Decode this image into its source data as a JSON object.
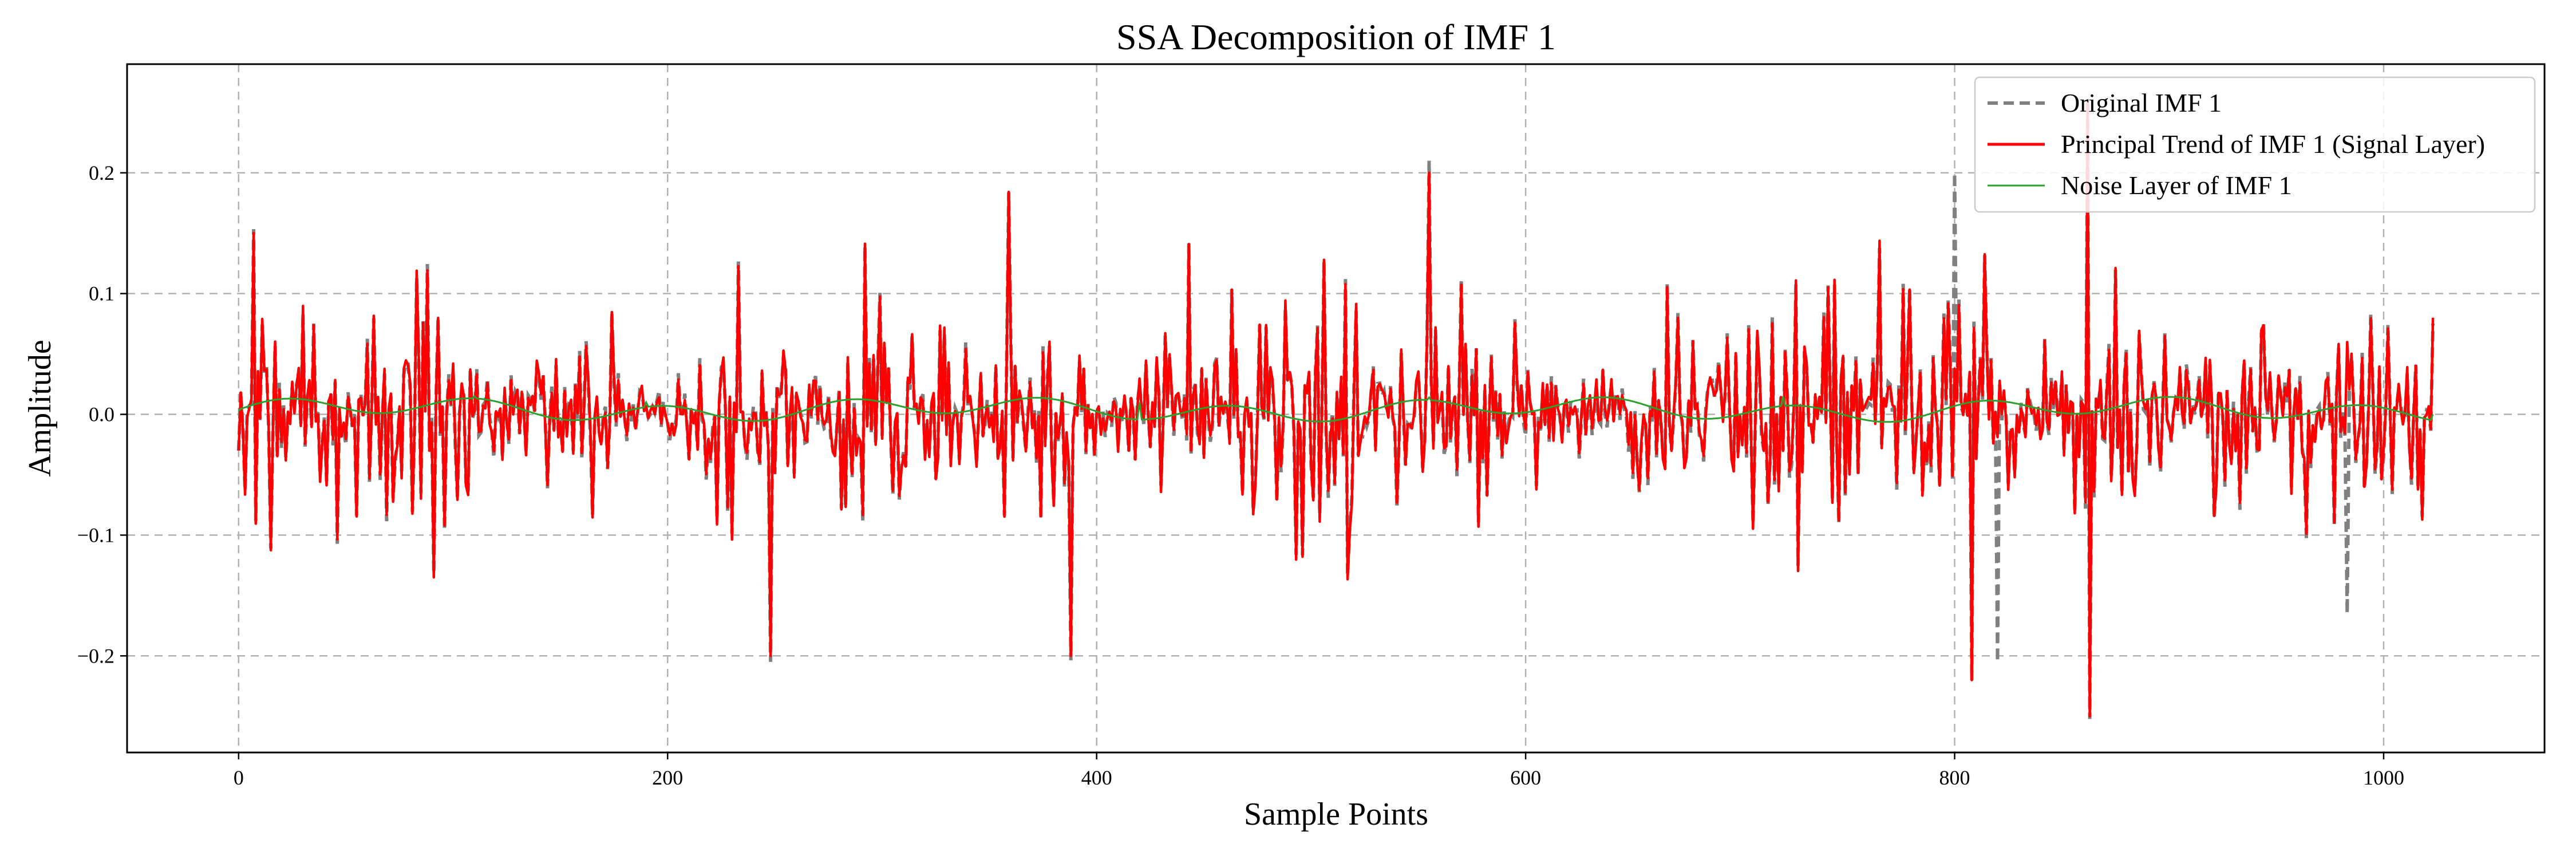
{
  "chart_data": {
    "type": "line",
    "title": "SSA Decomposition of IMF 1",
    "xlabel": "Sample Points",
    "ylabel": "Amplitude",
    "xlim": [
      -52,
      1075
    ],
    "ylim": [
      -0.28,
      0.29
    ],
    "x_ticks": [
      0,
      200,
      400,
      600,
      800,
      1000
    ],
    "x_tick_labels": [
      "0",
      "200",
      "400",
      "600",
      "800",
      "1000"
    ],
    "y_ticks": [
      -0.2,
      -0.1,
      0.0,
      0.1,
      0.2
    ],
    "y_tick_labels": [
      "−0.2",
      "−0.1",
      "0.0",
      "0.1",
      "0.2"
    ],
    "grid": true,
    "legend_position": "top-right",
    "n_points": 1024,
    "series": [
      {
        "name": "Original IMF 1",
        "color": "#808080",
        "style": "dashed",
        "description": "oscillating around 0, mostly within ±0.1, peaks ~0.21, troughs ~-0.21",
        "sample_values": [
          [
            0,
            -0.03
          ],
          [
            248,
            -0.205
          ],
          [
            555,
            0.21
          ],
          [
            800,
            0.2
          ],
          [
            820,
            -0.205
          ],
          [
            862,
            0.26
          ],
          [
            983,
            -0.165
          ]
        ]
      },
      {
        "name": "Principal Trend of IMF 1 (Signal Layer)",
        "color": "#ff0000",
        "style": "solid",
        "description": "nearly identical to original, dense oscillation",
        "sample_values": [
          [
            0,
            -0.03
          ],
          [
            7,
            0.15
          ],
          [
            248,
            -0.2
          ],
          [
            388,
            -0.2
          ],
          [
            555,
            0.2
          ],
          [
            808,
            -0.22
          ],
          [
            862,
            0.26
          ],
          [
            863,
            -0.25
          ],
          [
            1023,
            0.08
          ]
        ]
      },
      {
        "name": "Noise Layer of IMF 1",
        "color": "#2ca02c",
        "style": "solid",
        "description": "small smooth wave around 0, amplitude ~0.01",
        "sample_values": [
          [
            0,
            0.003
          ],
          [
            110,
            0.015
          ],
          [
            150,
            -0.003
          ],
          [
            190,
            0.01
          ],
          [
            420,
            0.01
          ],
          [
            555,
            0.014
          ],
          [
            720,
            0.015
          ],
          [
            1023,
            0.0
          ]
        ]
      }
    ]
  }
}
